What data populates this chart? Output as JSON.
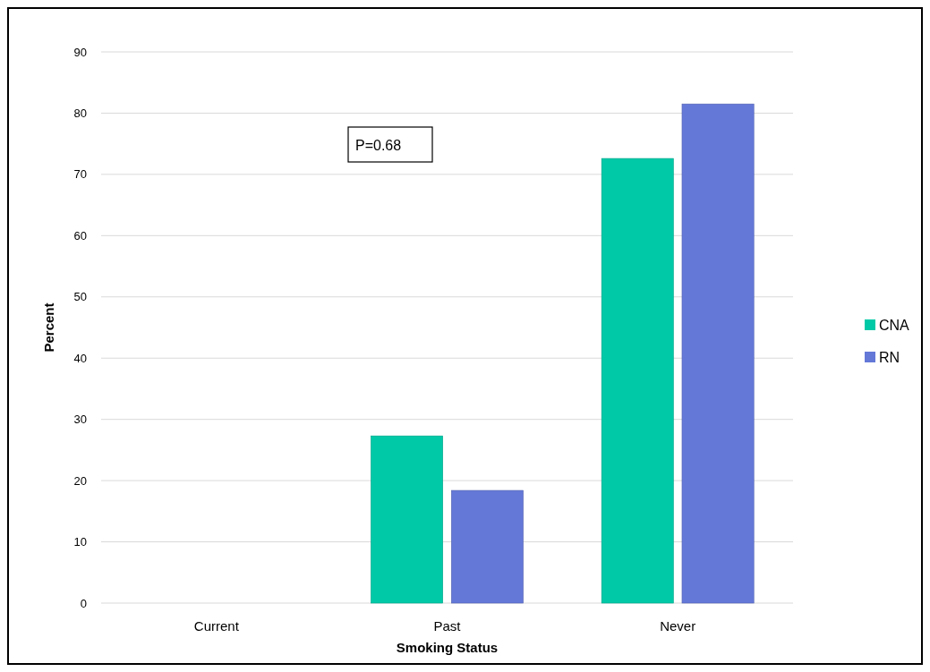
{
  "chart_data": {
    "type": "bar",
    "xlabel": "Smoking Status",
    "ylabel": "Percent",
    "categories": [
      "Current",
      "Past",
      "Never"
    ],
    "series": [
      {
        "name": "CNA",
        "color": "#00c9a7",
        "values": [
          0,
          27.3,
          72.6
        ]
      },
      {
        "name": "RN",
        "color": "#6478d8",
        "values": [
          0,
          18.4,
          81.5
        ]
      }
    ],
    "ylim": [
      0,
      90
    ],
    "yticks": [
      0,
      10,
      20,
      30,
      40,
      50,
      60,
      70,
      80,
      90
    ],
    "grid": "y",
    "legend": "right",
    "annotations": [
      "P=0.68"
    ]
  }
}
